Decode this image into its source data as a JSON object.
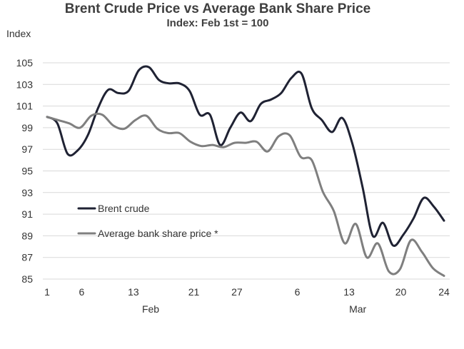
{
  "chart_data": {
    "type": "line",
    "title": "Brent Crude Price vs Average Bank Share Price",
    "subtitle": "Index: Feb 1st = 100",
    "ylabel": "Index",
    "xlabel": "",
    "ylim": [
      85,
      105
    ],
    "yticks": [
      85,
      87,
      89,
      91,
      93,
      95,
      97,
      99,
      101,
      103,
      105
    ],
    "x_tick_labels": [
      "1",
      "6",
      "13",
      "21",
      "27",
      "6",
      "13",
      "20",
      "24"
    ],
    "x_tick_index": [
      0,
      4,
      10,
      17,
      22,
      29,
      35,
      41,
      46
    ],
    "month_labels": [
      {
        "label": "Feb",
        "index": 12
      },
      {
        "label": "Mar",
        "index": 36
      }
    ],
    "grid": "horizontal",
    "legend_position": "left-middle",
    "series": [
      {
        "name": "Brent crude",
        "color": "#1f2233",
        "values": [
          100,
          99.4,
          96.6,
          96.9,
          98.3,
          100.8,
          102.5,
          102.2,
          102.4,
          104.3,
          104.6,
          103.4,
          103.1,
          103.1,
          102.4,
          100.2,
          100.2,
          97.4,
          99.0,
          100.4,
          99.6,
          101.2,
          101.6,
          102.2,
          103.6,
          104.0,
          100.8,
          99.7,
          98.6,
          99.9,
          97.5,
          93.5,
          89.0,
          90.2,
          88.1,
          89.1,
          90.6,
          92.5,
          91.7,
          90.4
        ]
      },
      {
        "name": "Average bank share price *",
        "color": "#7f7f7f",
        "values": [
          100,
          99.7,
          99.4,
          99.0,
          100.1,
          100.2,
          99.2,
          98.9,
          99.7,
          100.1,
          98.9,
          98.5,
          98.5,
          97.7,
          97.3,
          97.4,
          97.2,
          97.6,
          97.6,
          97.7,
          96.8,
          98.2,
          98.3,
          96.3,
          96.0,
          93.1,
          91.3,
          88.3,
          90.1,
          87.0,
          88.3,
          85.7,
          85.9,
          88.6,
          87.5,
          86.0,
          85.3
        ]
      }
    ]
  }
}
